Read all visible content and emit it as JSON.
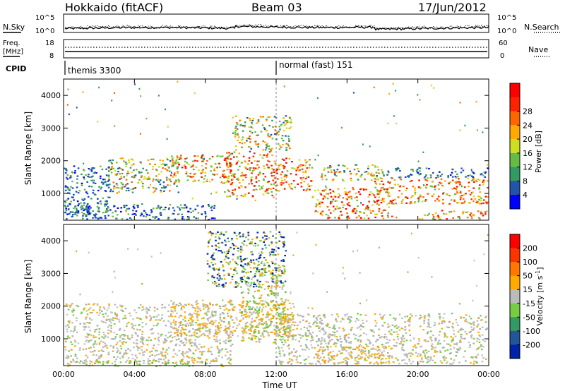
{
  "header": {
    "title": "Hokkaido (fitACF)",
    "beam": "Beam 03",
    "date": "17/Jun/2012"
  },
  "noise_panel": {
    "left_label": "N.Sky",
    "right_label": "N.Search",
    "left_ticks": [
      "10^5",
      "10^0"
    ],
    "right_ticks": [
      "10^5",
      "10^0"
    ]
  },
  "freq_panel": {
    "left_label_1": "Freq.",
    "left_label_2": "[MHz]",
    "right_label": "Nave",
    "left_ticks": [
      "18",
      "8"
    ],
    "right_ticks": [
      "60",
      "0"
    ]
  },
  "cpid": {
    "label": "CPID",
    "modes": [
      {
        "start_hour": 0,
        "text": "themis 3300"
      },
      {
        "start_hour": 12,
        "text": "normal (fast) 151"
      }
    ]
  },
  "chart_data": [
    {
      "type": "heatmap",
      "title": "",
      "xlabel": "Time UT",
      "ylabel": "Slant Range [km]",
      "x_ticks": [
        "00:00",
        "04:00",
        "08:00",
        "12:00",
        "16:00",
        "20:00",
        "00:00"
      ],
      "x_range_hours": [
        0,
        24
      ],
      "y_ticks": [
        1000,
        2000,
        3000,
        4000
      ],
      "ylim": [
        180,
        4500
      ],
      "colorbar": {
        "label": "Power [dB]",
        "ticks": [
          "4",
          "8",
          "12",
          "16",
          "20",
          "24",
          "28"
        ],
        "colors": [
          "#0000ff",
          "#2255aa",
          "#339966",
          "#66bb44",
          "#ccdd22",
          "#ffaa00",
          "#ff6600",
          "#ff2200",
          "#ff0000"
        ]
      }
    },
    {
      "type": "heatmap",
      "title": "",
      "xlabel": "Time UT",
      "ylabel": "Slant Range [km]",
      "x_ticks": [
        "00:00",
        "04:00",
        "08:00",
        "12:00",
        "16:00",
        "20:00",
        "00:00"
      ],
      "x_range_hours": [
        0,
        24
      ],
      "y_ticks": [
        1000,
        2000,
        3000,
        4000
      ],
      "ylim": [
        180,
        4500
      ],
      "colorbar": {
        "label_1": "Velocity",
        "label_2": "[m s",
        "label_sup": "-1",
        "label_3": "]",
        "ticks": [
          "200",
          "100",
          "50",
          "15",
          "-15",
          "-50",
          "-100",
          "-200"
        ],
        "colors": [
          "#0022aa",
          "#225599",
          "#339966",
          "#77cc44",
          "#bbbbbb",
          "#ffaa00",
          "#ff7700",
          "#ff3300",
          "#ff0000"
        ]
      }
    }
  ],
  "regions": {
    "power": [
      {
        "t0": 0.0,
        "t1": 2.6,
        "r0": 250,
        "r1": 1900,
        "mix": "low"
      },
      {
        "t0": 2.5,
        "t1": 6.5,
        "r0": 1050,
        "r1": 2100,
        "mix": "mid"
      },
      {
        "t0": 0.0,
        "t1": 8.5,
        "r0": 220,
        "r1": 700,
        "mix": "low"
      },
      {
        "t0": 6.0,
        "t1": 9.5,
        "r0": 1300,
        "r1": 2200,
        "mix": "hot"
      },
      {
        "t0": 9.0,
        "t1": 12.0,
        "r0": 900,
        "r1": 2300,
        "mix": "hot"
      },
      {
        "t0": 9.5,
        "t1": 12.8,
        "r0": 2300,
        "r1": 3400,
        "mix": "mid"
      },
      {
        "t0": 12.0,
        "t1": 14.0,
        "r0": 1100,
        "r1": 2100,
        "mix": "hot"
      },
      {
        "t0": 14.0,
        "t1": 18.5,
        "r0": 250,
        "r1": 1200,
        "mix": "hot"
      },
      {
        "t0": 17.5,
        "t1": 23.9,
        "r0": 700,
        "r1": 1500,
        "mix": "hot"
      },
      {
        "t0": 18.0,
        "t1": 23.9,
        "r0": 1500,
        "r1": 1800,
        "mix": "low"
      },
      {
        "t0": 14.5,
        "t1": 18.0,
        "r0": 1400,
        "r1": 1900,
        "mix": "mid"
      },
      {
        "t0": 20.0,
        "t1": 23.9,
        "r0": 220,
        "r1": 500,
        "mix": "hot"
      }
    ],
    "velocity": [
      {
        "t0": 0.0,
        "t1": 9.5,
        "r0": 250,
        "r1": 2100,
        "mix": "grey"
      },
      {
        "t0": 6.0,
        "t1": 13.0,
        "r0": 1100,
        "r1": 2200,
        "mix": "orange"
      },
      {
        "t0": 10.0,
        "t1": 12.5,
        "r0": 900,
        "r1": 3400,
        "mix": "green"
      },
      {
        "t0": 12.0,
        "t1": 23.9,
        "r0": 250,
        "r1": 1800,
        "mix": "grey"
      },
      {
        "t0": 14.0,
        "t1": 18.5,
        "r0": 250,
        "r1": 800,
        "mix": "orange"
      },
      {
        "t0": 0.0,
        "t1": 9.0,
        "r0": 180,
        "r1": 350,
        "mix": "green"
      },
      {
        "t0": 8.0,
        "t1": 12.5,
        "r0": 2600,
        "r1": 4300,
        "mix": "blue"
      }
    ]
  }
}
